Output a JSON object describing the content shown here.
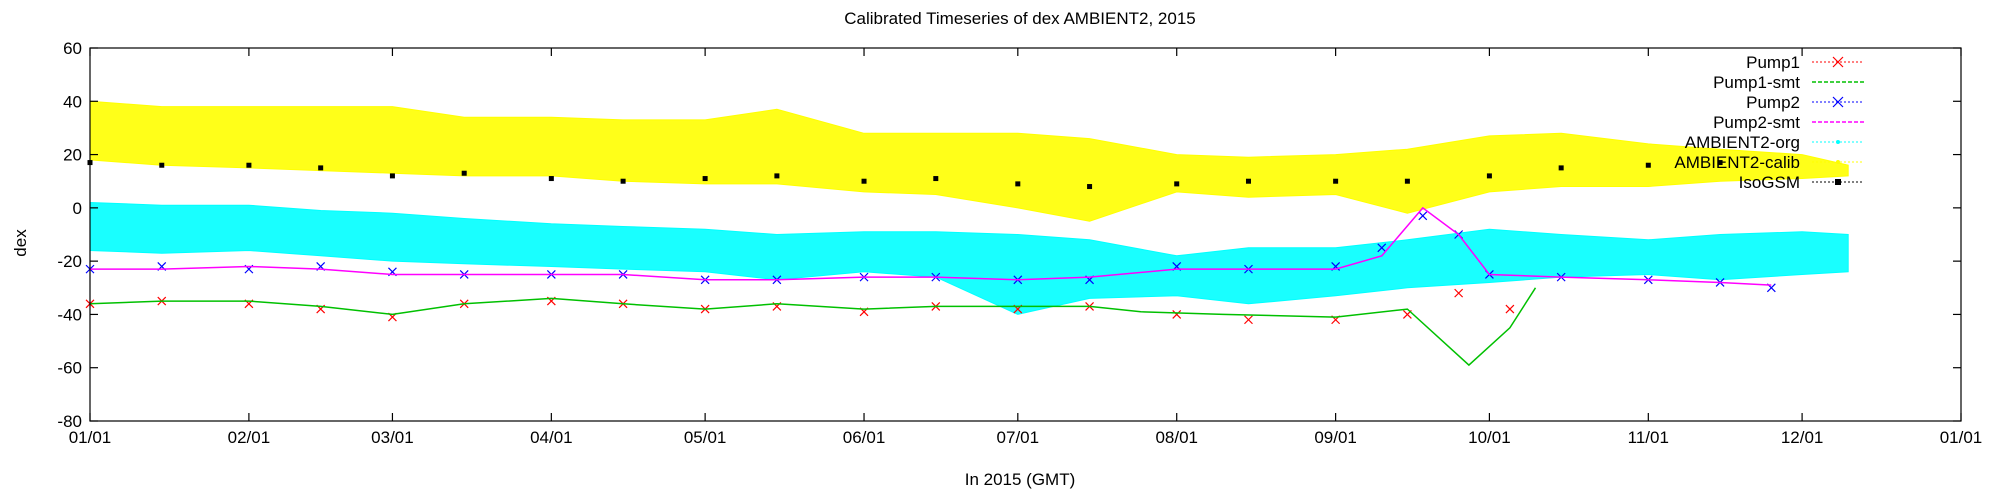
{
  "chart_data": {
    "type": "scatter",
    "title": "Calibrated Timeseries of dex AMBIENT2, 2015",
    "xlabel": "In 2015 (GMT)",
    "ylabel": "dex",
    "ylim": [
      -80,
      60
    ],
    "xlim": [
      "2015-01-01",
      "2016-01-01"
    ],
    "y_ticks": [
      "60",
      "40",
      "20",
      "0",
      "-20",
      "-40",
      "-60",
      "-80"
    ],
    "x_ticks": [
      "01/01",
      "02/01",
      "03/01",
      "04/01",
      "05/01",
      "06/01",
      "07/01",
      "08/01",
      "09/01",
      "10/01",
      "11/01",
      "12/01",
      "01/01"
    ],
    "grid": false,
    "legend_position": "top-right",
    "legend": [
      {
        "name": "Pump1",
        "color": "#ff0000",
        "marker": "x"
      },
      {
        "name": "Pump1-smt",
        "color": "#00c000",
        "marker": "line"
      },
      {
        "name": "Pump2",
        "color": "#0000ff",
        "marker": "x"
      },
      {
        "name": "Pump2-smt",
        "color": "#ff00ff",
        "marker": "line"
      },
      {
        "name": "AMBIENT2-org",
        "color": "#00ffff",
        "marker": "dot"
      },
      {
        "name": "AMBIENT2-calib",
        "color": "#ffff00",
        "marker": "dot"
      },
      {
        "name": "IsoGSM",
        "color": "#000000",
        "marker": "square"
      }
    ],
    "series": [
      {
        "name": "AMBIENT2-calib",
        "band": true,
        "color": "#ffff00",
        "x": [
          "2015-01-01",
          "2015-01-15",
          "2015-02-01",
          "2015-02-15",
          "2015-03-01",
          "2015-03-15",
          "2015-04-01",
          "2015-04-15",
          "2015-05-01",
          "2015-05-15",
          "2015-06-01",
          "2015-06-15",
          "2015-07-01",
          "2015-07-15",
          "2015-08-01",
          "2015-08-15",
          "2015-09-01",
          "2015-09-15",
          "2015-10-01",
          "2015-10-15",
          "2015-11-01",
          "2015-11-15",
          "2015-12-01",
          "2015-12-10"
        ],
        "low": [
          18,
          16,
          15,
          14,
          13,
          12,
          12,
          10,
          9,
          9,
          6,
          5,
          0,
          -5,
          6,
          4,
          5,
          -2,
          6,
          8,
          8,
          10,
          11,
          12
        ],
        "high": [
          40,
          38,
          38,
          38,
          38,
          34,
          34,
          33,
          33,
          37,
          28,
          28,
          28,
          26,
          20,
          19,
          20,
          22,
          27,
          28,
          24,
          22,
          20,
          16
        ]
      },
      {
        "name": "AMBIENT2-org",
        "band": true,
        "color": "#00ffff",
        "x": [
          "2015-01-01",
          "2015-01-15",
          "2015-02-01",
          "2015-02-15",
          "2015-03-01",
          "2015-03-15",
          "2015-04-01",
          "2015-04-15",
          "2015-05-01",
          "2015-05-15",
          "2015-06-01",
          "2015-06-15",
          "2015-07-01",
          "2015-07-15",
          "2015-08-01",
          "2015-08-15",
          "2015-09-01",
          "2015-09-15",
          "2015-10-01",
          "2015-10-15",
          "2015-11-01",
          "2015-11-15",
          "2015-12-01",
          "2015-12-10"
        ],
        "low": [
          -16,
          -17,
          -16,
          -18,
          -20,
          -21,
          -22,
          -23,
          -24,
          -27,
          -24,
          -26,
          -40,
          -34,
          -33,
          -36,
          -33,
          -30,
          -28,
          -26,
          -25,
          -27,
          -25,
          -24
        ],
        "high": [
          2,
          1,
          1,
          -1,
          -2,
          -4,
          -6,
          -7,
          -8,
          -10,
          -9,
          -9,
          -10,
          -12,
          -18,
          -15,
          -15,
          -12,
          -8,
          -10,
          -12,
          -10,
          -9,
          -10
        ]
      },
      {
        "name": "Pump2",
        "color": "#0000ff",
        "x": [
          "2015-01-01",
          "2015-01-15",
          "2015-02-01",
          "2015-02-15",
          "2015-03-01",
          "2015-03-15",
          "2015-04-01",
          "2015-04-15",
          "2015-05-01",
          "2015-05-15",
          "2015-06-01",
          "2015-06-15",
          "2015-07-01",
          "2015-07-15",
          "2015-08-01",
          "2015-08-15",
          "2015-09-01",
          "2015-09-10",
          "2015-09-18",
          "2015-09-25",
          "2015-10-01",
          "2015-10-15",
          "2015-11-01",
          "2015-11-15",
          "2015-11-25"
        ],
        "y": [
          -23,
          -22,
          -23,
          -22,
          -24,
          -25,
          -25,
          -25,
          -27,
          -27,
          -26,
          -26,
          -27,
          -27,
          -22,
          -23,
          -22,
          -15,
          -3,
          -10,
          -25,
          -26,
          -27,
          -28,
          -30
        ]
      },
      {
        "name": "Pump2-smt",
        "color": "#ff00ff",
        "x": [
          "2015-01-01",
          "2015-01-15",
          "2015-02-01",
          "2015-02-15",
          "2015-03-01",
          "2015-03-15",
          "2015-04-01",
          "2015-04-15",
          "2015-05-01",
          "2015-05-15",
          "2015-06-01",
          "2015-06-15",
          "2015-07-01",
          "2015-07-15",
          "2015-08-01",
          "2015-08-15",
          "2015-09-01",
          "2015-09-10",
          "2015-09-18",
          "2015-09-25",
          "2015-10-01",
          "2015-10-15",
          "2015-11-01",
          "2015-11-15",
          "2015-11-25"
        ],
        "y": [
          -23,
          -23,
          -22,
          -23,
          -25,
          -25,
          -25,
          -25,
          -27,
          -27,
          -26,
          -26,
          -27,
          -26,
          -23,
          -23,
          -23,
          -18,
          0,
          -10,
          -25,
          -26,
          -27,
          -28,
          -29
        ]
      },
      {
        "name": "Pump1",
        "color": "#ff0000",
        "x": [
          "2015-01-01",
          "2015-01-15",
          "2015-02-01",
          "2015-02-15",
          "2015-03-01",
          "2015-03-15",
          "2015-04-01",
          "2015-04-15",
          "2015-05-01",
          "2015-05-15",
          "2015-06-01",
          "2015-06-15",
          "2015-07-01",
          "2015-07-15",
          "2015-08-01",
          "2015-08-15",
          "2015-09-01",
          "2015-09-15",
          "2015-09-25",
          "2015-10-05"
        ],
        "y": [
          -36,
          -35,
          -36,
          -38,
          -41,
          -36,
          -35,
          -36,
          -38,
          -37,
          -39,
          -37,
          -38,
          -37,
          -40,
          -42,
          -42,
          -40,
          -32,
          -38
        ]
      },
      {
        "name": "Pump1-smt",
        "color": "#00c000",
        "x": [
          "2015-01-01",
          "2015-01-15",
          "2015-02-01",
          "2015-02-15",
          "2015-03-01",
          "2015-03-15",
          "2015-04-01",
          "2015-04-15",
          "2015-05-01",
          "2015-05-15",
          "2015-06-01",
          "2015-06-15",
          "2015-07-01",
          "2015-07-15",
          "2015-07-25",
          "2015-08-10",
          "2015-09-01",
          "2015-09-15",
          "2015-09-27",
          "2015-10-05",
          "2015-10-10"
        ],
        "y": [
          -36,
          -35,
          -35,
          -37,
          -40,
          -36,
          -34,
          -36,
          -38,
          -36,
          -38,
          -37,
          -37,
          -37,
          -39,
          -40,
          -41,
          -38,
          -59,
          -45,
          -30
        ]
      },
      {
        "name": "IsoGSM",
        "color": "#000000",
        "x": [
          "2015-01-01",
          "2015-01-15",
          "2015-02-01",
          "2015-02-15",
          "2015-03-01",
          "2015-03-15",
          "2015-04-01",
          "2015-04-15",
          "2015-05-01",
          "2015-05-15",
          "2015-06-01",
          "2015-06-15",
          "2015-07-01",
          "2015-07-15",
          "2015-08-01",
          "2015-08-15",
          "2015-09-01",
          "2015-09-15",
          "2015-10-01",
          "2015-10-15",
          "2015-11-01",
          "2015-11-15"
        ],
        "y": [
          17,
          16,
          16,
          15,
          12,
          13,
          11,
          10,
          11,
          12,
          10,
          11,
          9,
          8,
          9,
          10,
          10,
          10,
          12,
          15,
          16,
          17
        ]
      }
    ]
  }
}
